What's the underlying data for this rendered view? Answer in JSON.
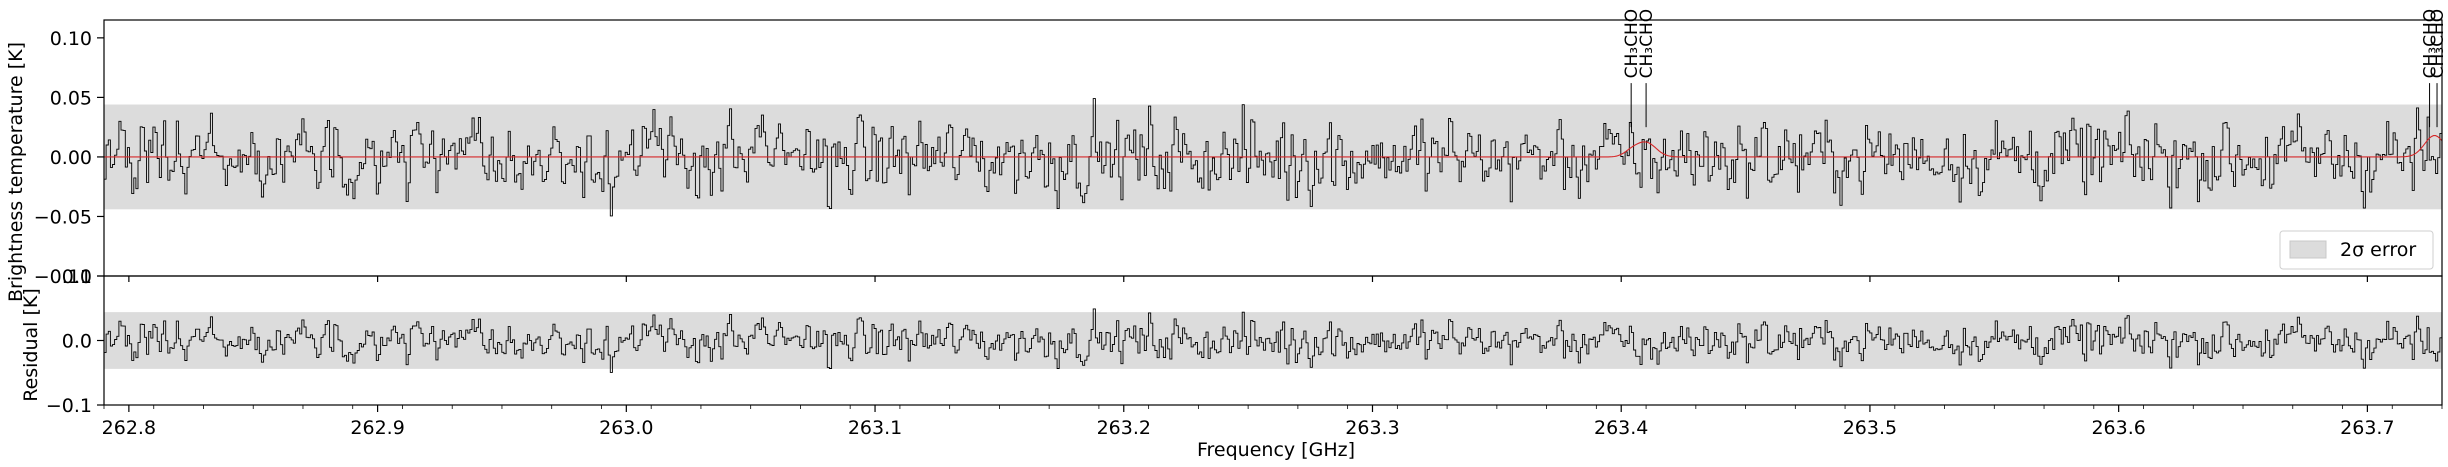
{
  "chart_data": [
    {
      "type": "line",
      "panel": "top",
      "ylabel": "Brightness temperature [K]",
      "xlim": [
        262.79,
        263.73
      ],
      "ylim": [
        -0.1,
        0.115
      ],
      "yticks": [
        0.1,
        0.05,
        0.0,
        -0.05,
        -0.1
      ],
      "ytick_labels": [
        "0.10",
        "0.05",
        "0.00",
        "−0.05",
        "−0.10"
      ],
      "error_band": {
        "name": "2σ error",
        "lower": -0.044,
        "upper": 0.044,
        "color": "#dcdcdc"
      },
      "legend": {
        "entries": [
          "2σ error"
        ],
        "placement": "lower-right"
      },
      "series": [
        {
          "role": "observed",
          "color": "#000000",
          "x_start": 262.79,
          "x_end": 263.73,
          "n_points": 1100,
          "noise_rms": 0.022,
          "seed": 17
        },
        {
          "role": "model",
          "color": "#d62728",
          "features": [
            {
              "x": 263.41,
              "amp": 0.012,
              "width": 0.004
            },
            {
              "x": 263.404,
              "amp": 0.004,
              "width": 0.003
            },
            {
              "x": 263.727,
              "amp": 0.018,
              "width": 0.004
            }
          ]
        }
      ],
      "line_ids": [
        {
          "x": 263.404,
          "label": "CH₃CHO"
        },
        {
          "x": 263.41,
          "label": "CH₃CHO"
        },
        {
          "x": 263.725,
          "label": "CH₃CHO"
        },
        {
          "x": 263.728,
          "label": "CH₃CHO"
        }
      ]
    },
    {
      "type": "line",
      "panel": "bottom",
      "ylabel": "Residual [K]",
      "xlabel": "Frequency [GHz]",
      "xlim": [
        262.79,
        263.73
      ],
      "ylim": [
        -0.1,
        0.1
      ],
      "yticks": [
        0.1,
        0.0,
        -0.1
      ],
      "ytick_labels": [
        "0.1",
        "0.0",
        "−0.1"
      ],
      "xticks": [
        262.8,
        262.9,
        263.0,
        263.1,
        263.2,
        263.3,
        263.4,
        263.5,
        263.6,
        263.7
      ],
      "xtick_labels": [
        "262.8",
        "262.9",
        "263.0",
        "263.1",
        "263.2",
        "263.3",
        "263.4",
        "263.5",
        "263.6",
        "263.7"
      ],
      "error_band": {
        "lower": -0.044,
        "upper": 0.044,
        "color": "#dcdcdc"
      },
      "series": [
        {
          "role": "residual",
          "color": "#000000",
          "derived_from": "observed minus model"
        }
      ]
    }
  ]
}
